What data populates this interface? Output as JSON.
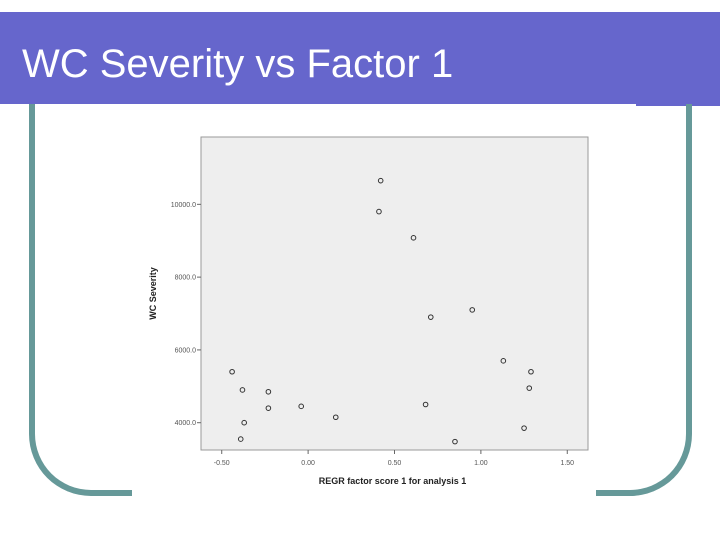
{
  "slide": {
    "title": "WC Severity vs Factor 1"
  },
  "colors": {
    "title_bar": "#6666cc",
    "title_text": "#ffffff",
    "frame": "#669999",
    "plot_background": "#eeeeee",
    "marker": "#333333"
  },
  "chart_data": {
    "type": "scatter",
    "title": "",
    "xlabel": "REGR factor score 1 for analysis 1",
    "ylabel": "WC Severity",
    "xlim": [
      -0.62,
      1.62
    ],
    "ylim": [
      3250,
      11850
    ],
    "xticks": [
      -0.5,
      0.0,
      0.5,
      1.0,
      1.5
    ],
    "xtick_labels": [
      "-0.50",
      "0.00",
      "0.50",
      "1.00",
      "1.50"
    ],
    "yticks": [
      4000,
      6000,
      8000,
      10000
    ],
    "ytick_labels": [
      "4000.0",
      "6000.0",
      "8000.0",
      "10000.0"
    ],
    "grid": false,
    "legend": "none",
    "points": [
      {
        "x": -0.44,
        "y": 5400
      },
      {
        "x": -0.38,
        "y": 4900
      },
      {
        "x": -0.37,
        "y": 4000
      },
      {
        "x": -0.39,
        "y": 3550
      },
      {
        "x": -0.23,
        "y": 4850
      },
      {
        "x": -0.23,
        "y": 4400
      },
      {
        "x": -0.04,
        "y": 4450
      },
      {
        "x": 0.16,
        "y": 4150
      },
      {
        "x": 0.42,
        "y": 10650
      },
      {
        "x": 0.41,
        "y": 9800
      },
      {
        "x": 0.61,
        "y": 9080
      },
      {
        "x": 0.71,
        "y": 6900
      },
      {
        "x": 0.68,
        "y": 4500
      },
      {
        "x": 0.85,
        "y": 3480
      },
      {
        "x": 0.95,
        "y": 7100
      },
      {
        "x": 1.13,
        "y": 5700
      },
      {
        "x": 1.29,
        "y": 5400
      },
      {
        "x": 1.28,
        "y": 4950
      },
      {
        "x": 1.25,
        "y": 3850
      }
    ]
  }
}
